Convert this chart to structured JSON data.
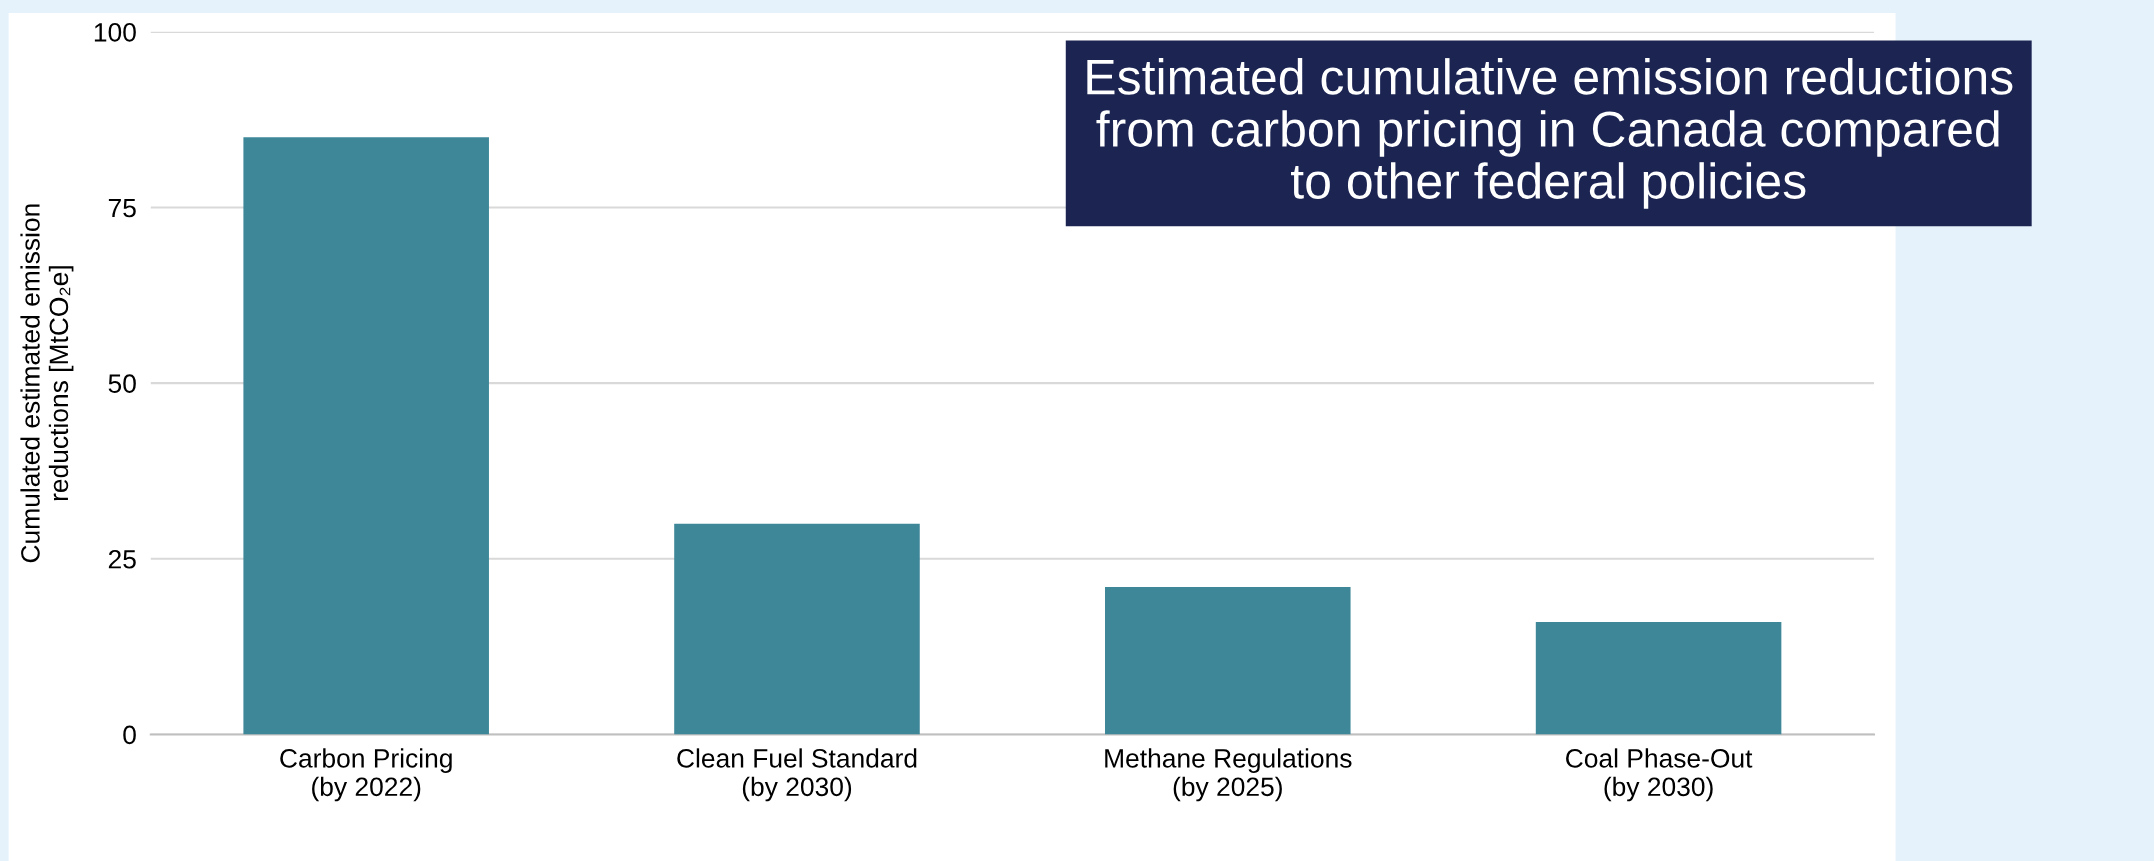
{
  "chart_data": {
    "type": "bar",
    "title": "Estimated cumulative emission reductions\nfrom carbon pricing in Canada compared\nto other federal policies",
    "ylabel": "Cumulated estimated emission\nreductions [MtCO₂e]",
    "categories": [
      "Carbon Pricing\n(by 2022)",
      "Clean Fuel Standard\n(by 2030)",
      "Methane Regulations\n(by 2025)",
      "Coal Phase-Out\n(by 2030)"
    ],
    "values": [
      85,
      30,
      21,
      16
    ],
    "color": "#3d8799",
    "ylim": [
      0,
      100
    ],
    "yticks": [
      0,
      25,
      50,
      75,
      100
    ],
    "grid": "y"
  }
}
